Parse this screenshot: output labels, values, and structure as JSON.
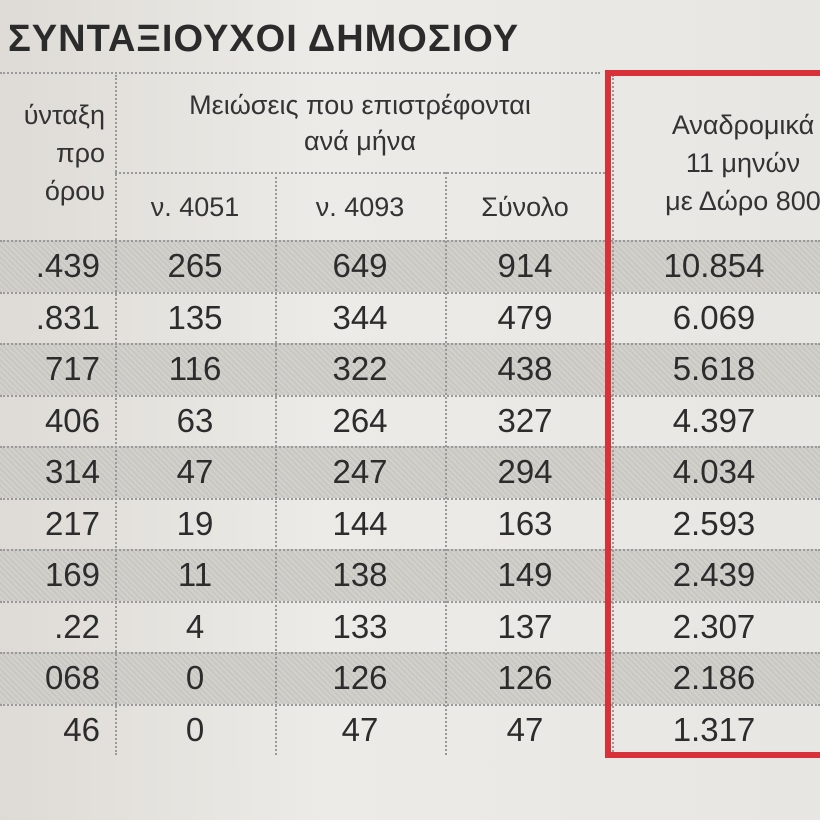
{
  "title": "ΣΥΝΤΑΞΙΟΥΧΟΙ ΔΗΜΟΣΙΟΥ",
  "header": {
    "col0": [
      "ύνταξη",
      "προ",
      "όρου"
    ],
    "group": [
      "Μειώσεις που επιστρέφονται",
      "ανά μήνα"
    ],
    "sub": [
      "ν. 4051",
      "ν. 4093",
      "Σύνολο"
    ],
    "last": [
      "Αναδρομικά",
      "11 μηνών",
      "με Δώρο 800"
    ]
  },
  "table": {
    "rows": [
      [
        ".439",
        "265",
        "649",
        "914",
        "10.854"
      ],
      [
        ".831",
        "135",
        "344",
        "479",
        "6.069"
      ],
      [
        "717",
        "116",
        "322",
        "438",
        "5.618"
      ],
      [
        "406",
        "63",
        "264",
        "327",
        "4.397"
      ],
      [
        "314",
        "47",
        "247",
        "294",
        "4.034"
      ],
      [
        "217",
        "19",
        "144",
        "163",
        "2.593"
      ],
      [
        "169",
        "11",
        "138",
        "149",
        "2.439"
      ],
      [
        ".22",
        "4",
        "133",
        "137",
        "2.307"
      ],
      [
        "068",
        "0",
        "126",
        "126",
        "2.186"
      ],
      [
        "46",
        "0",
        "47",
        "47",
        "1.317"
      ]
    ]
  }
}
